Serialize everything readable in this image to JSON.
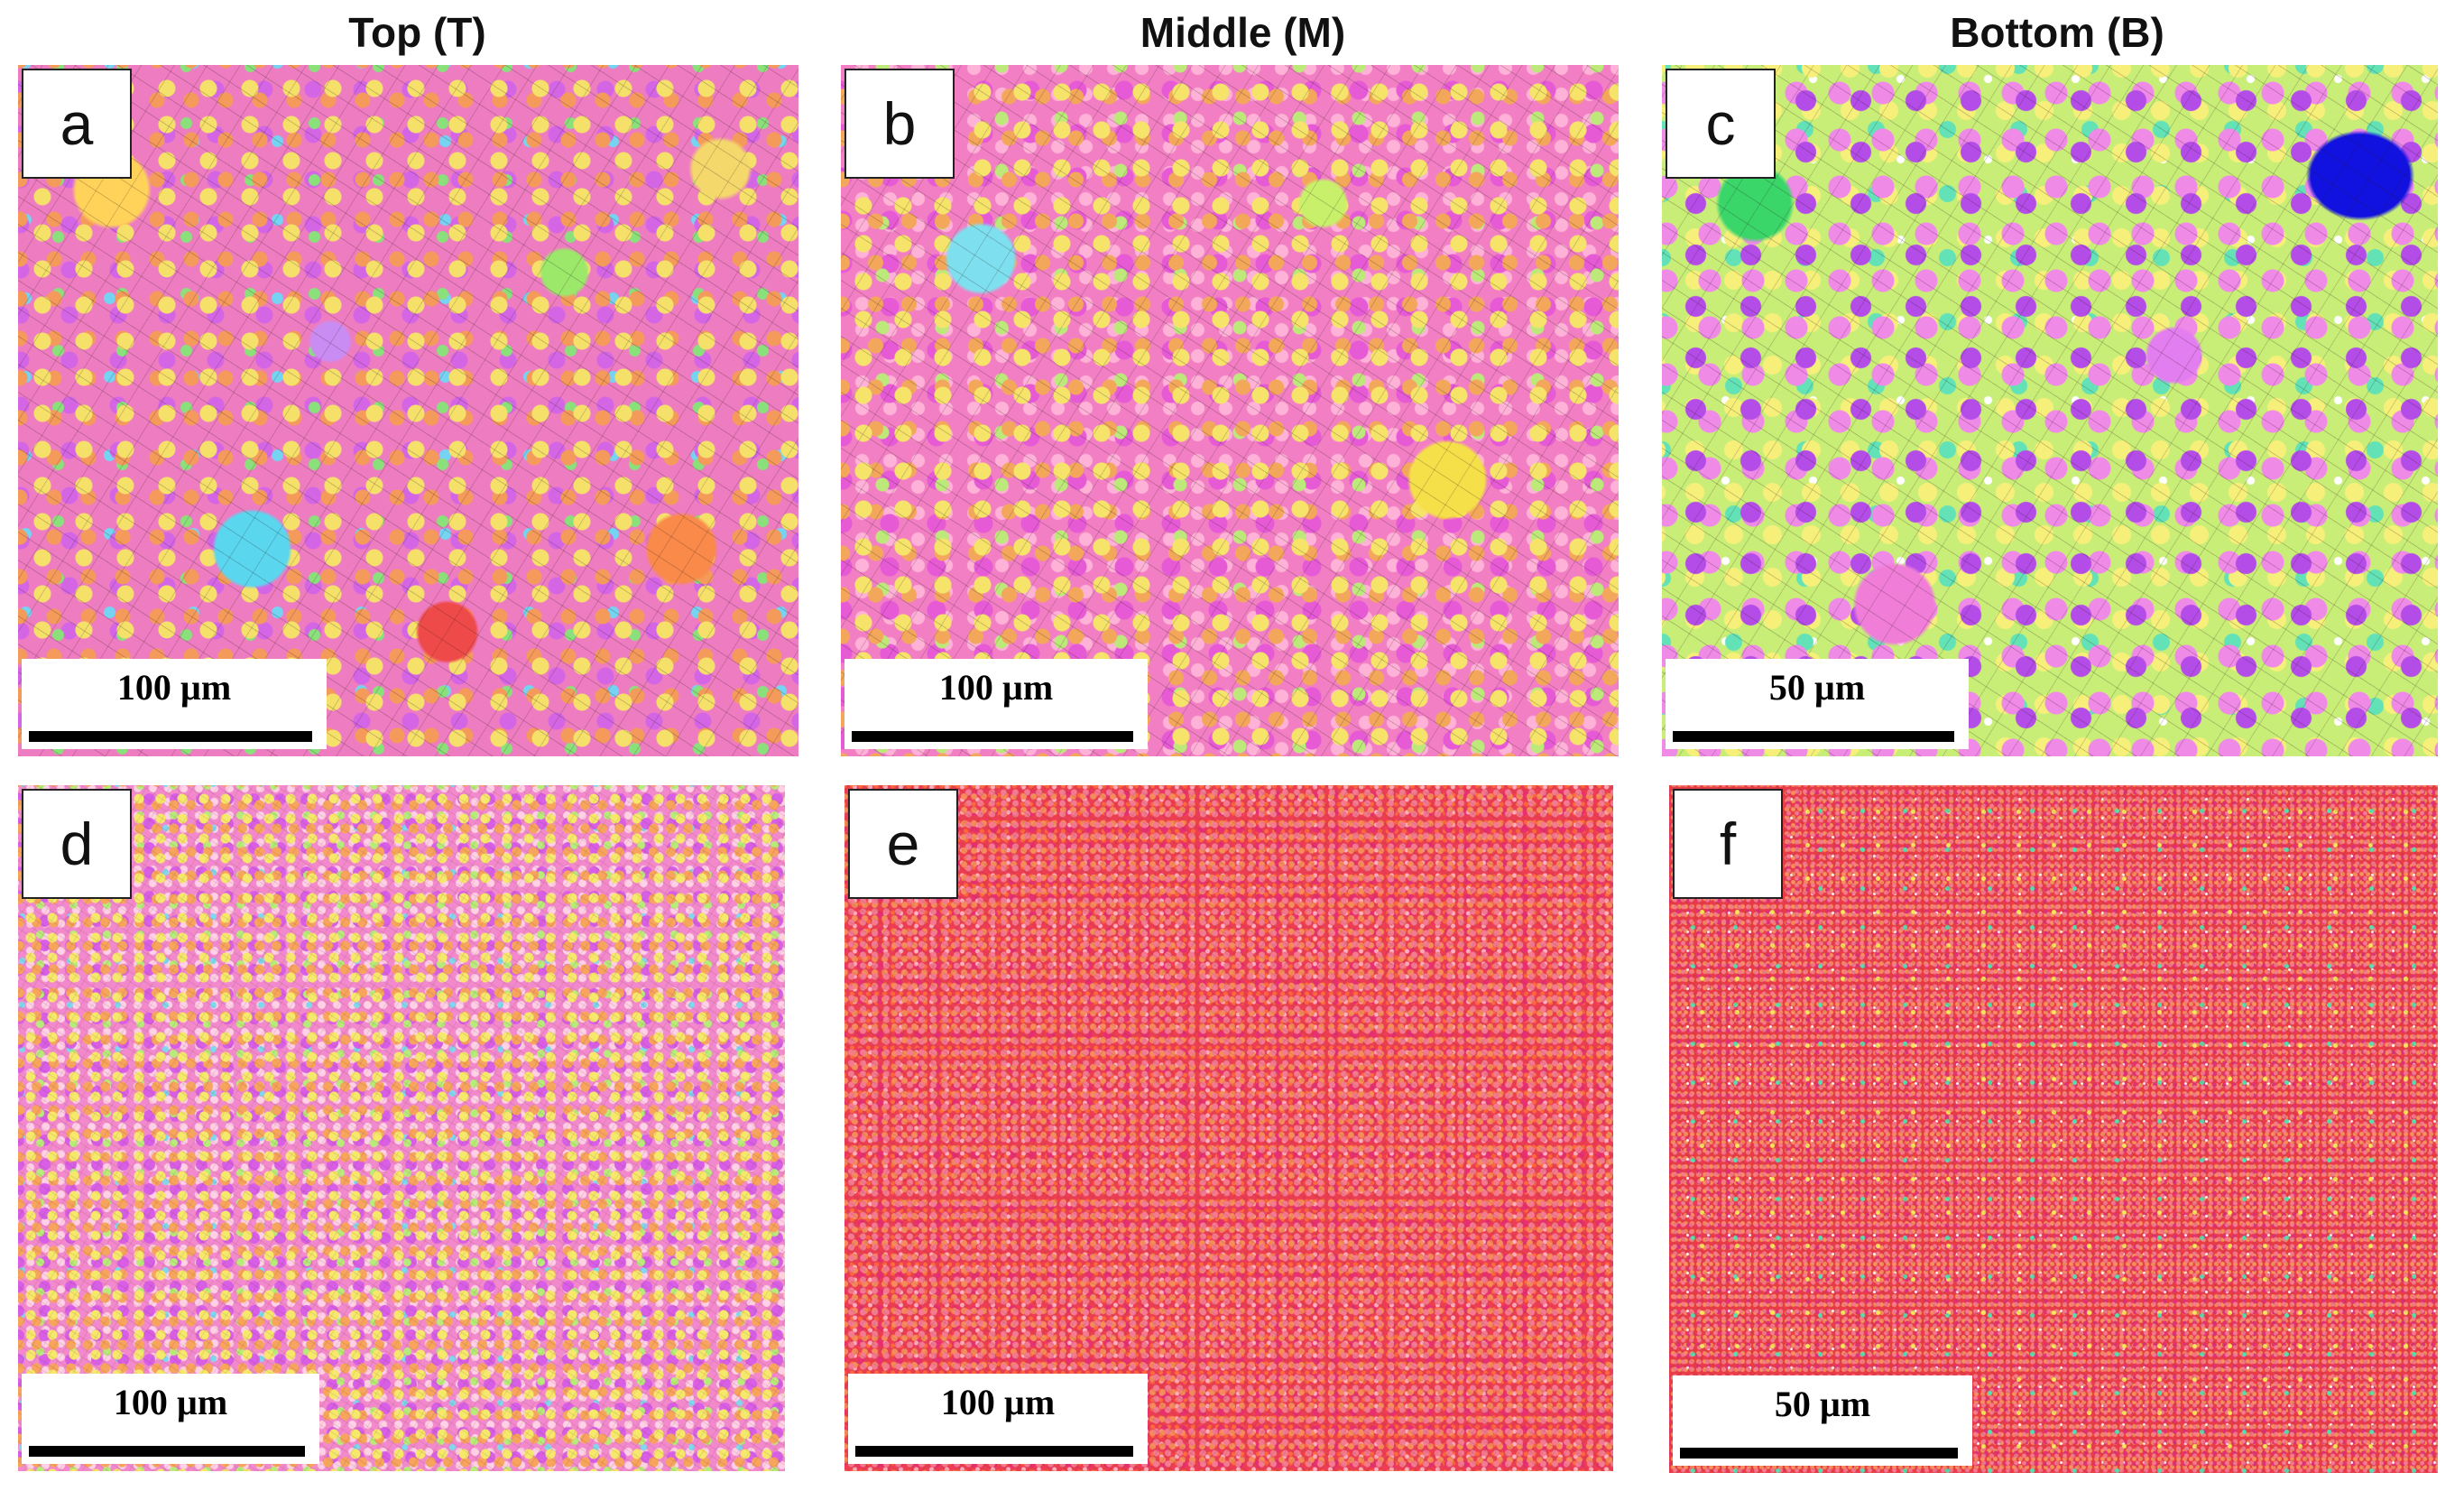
{
  "columns": [
    "Top (T)",
    "Middle (M)",
    "Bottom (B)"
  ],
  "panels": [
    {
      "letter": "a",
      "scale": "100 µm"
    },
    {
      "letter": "b",
      "scale": "100 µm"
    },
    {
      "letter": "c",
      "scale": "50 µm"
    },
    {
      "letter": "d",
      "scale": "100 µm"
    },
    {
      "letter": "e",
      "scale": "100 µm"
    },
    {
      "letter": "f",
      "scale": "50 µm"
    }
  ]
}
